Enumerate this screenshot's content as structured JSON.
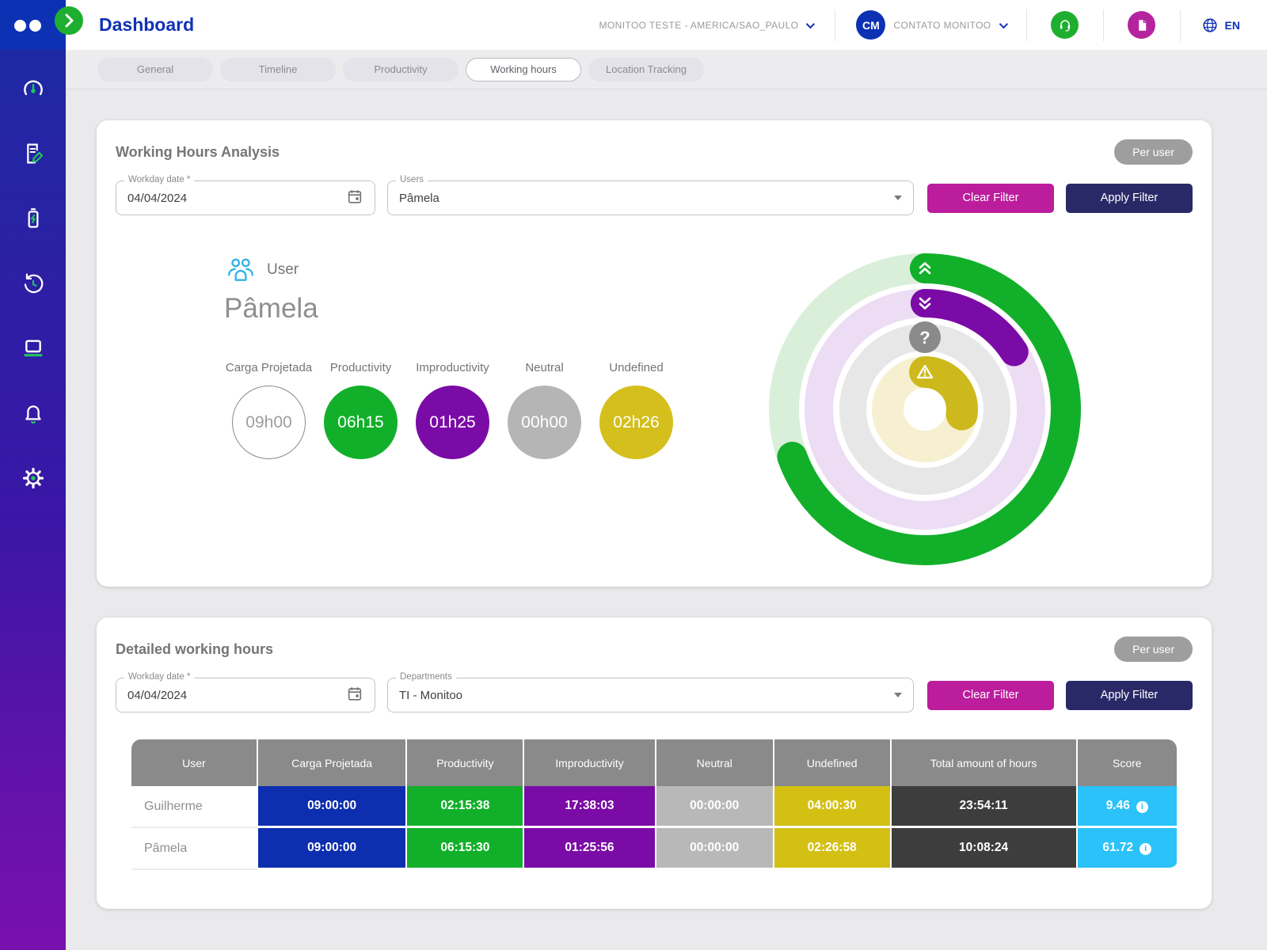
{
  "header": {
    "title": "Dashboard",
    "org_selector": "MONITOO TESTE - AMERICA/SAO_PAULO",
    "avatar_initials": "CM",
    "account_name": "CONTATO MONITOO",
    "language": "EN"
  },
  "sidebar": {
    "items": [
      {
        "icon": "gauge-icon"
      },
      {
        "icon": "report-edit-icon"
      },
      {
        "icon": "battery-bolt-icon"
      },
      {
        "icon": "history-icon"
      },
      {
        "icon": "laptop-icon"
      },
      {
        "icon": "bell-icon"
      },
      {
        "icon": "gear-icon"
      }
    ]
  },
  "tabs": {
    "items": [
      "General",
      "Timeline",
      "Productivity",
      "Working hours",
      "Location Tracking"
    ],
    "active": "Working hours"
  },
  "analysis_card": {
    "title": "Working Hours Analysis",
    "badge": "Per user",
    "workday_date": {
      "label": "Workday date *",
      "value": "04/04/2024"
    },
    "users_field": {
      "label": "Users",
      "value": "Pâmela"
    },
    "clear_filter_label": "Clear Filter",
    "apply_filter_label": "Apply Filter",
    "user_label": "User",
    "user_name": "Pâmela",
    "stats": [
      {
        "label": "Carga Projetada",
        "value": "09h00",
        "color": "outline"
      },
      {
        "label": "Productivity",
        "value": "06h15",
        "color": "#12b02a"
      },
      {
        "label": "Improductivity",
        "value": "01h25",
        "color": "#7b0ba6"
      },
      {
        "label": "Neutral",
        "value": "00h00",
        "color": "#b5b5b5"
      },
      {
        "label": "Undefined",
        "value": "02h26",
        "color": "#d4bf1c"
      }
    ]
  },
  "chart_data": {
    "type": "donut",
    "title": "Working hours distribution rings (outer to inner)",
    "total_reference": "09h00",
    "rings": [
      {
        "label": "Productivity",
        "value": "06h15",
        "pct": 69.5,
        "color": "#12b02a",
        "track": "#d9efd9",
        "icon": "chevrons-up"
      },
      {
        "label": "Improductivity",
        "value": "01h25",
        "pct": 15.9,
        "color": "#7b0ba6",
        "track": "#ecdcf4",
        "icon": "chevrons-down"
      },
      {
        "label": "Neutral",
        "value": "00h00",
        "pct": 0,
        "color": "#8a8a8a",
        "track": "#e7e7e7",
        "icon": "question"
      },
      {
        "label": "Undefined",
        "value": "02h26",
        "pct": 27.2,
        "color": "#cdb91c",
        "track": "#f6f0d0",
        "icon": "warning"
      }
    ],
    "legend_position": "none",
    "grid": false
  },
  "details_card": {
    "title": "Detailed working hours",
    "badge": "Per user",
    "workday_date": {
      "label": "Workday date *",
      "value": "04/04/2024"
    },
    "departments_field": {
      "label": "Departments",
      "value": "TI - Monitoo"
    },
    "clear_filter_label": "Clear Filter",
    "apply_filter_label": "Apply Filter",
    "table": {
      "columns": [
        "User",
        "Carga Projetada",
        "Productivity",
        "Improductivity",
        "Neutral",
        "Undefined",
        "Total amount of hours",
        "Score"
      ],
      "rows": [
        [
          "Guilherme",
          "09:00:00",
          "02:15:38",
          "17:38:03",
          "00:00:00",
          "04:00:30",
          "23:54:11",
          "9.46"
        ],
        [
          "Pâmela",
          "09:00:00",
          "06:15:30",
          "01:25:56",
          "00:00:00",
          "02:26:58",
          "10:08:24",
          "61.72"
        ]
      ]
    }
  },
  "colors": {
    "accent_blue": "#1032b4",
    "sidebar_gradient_top": "#1b2aa3",
    "sidebar_gradient_bottom": "#7a10ad",
    "green": "#12b02a",
    "purple": "#7b0ba6",
    "neutral_gray": "#b8b8b8",
    "yellow": "#d3c013",
    "carga_blue": "#0d2eae",
    "total_dark": "#3d3d3d",
    "score_cyan": "#2ac2f8",
    "clear_magenta": "#bb1d9c",
    "apply_navy": "#2a2968",
    "table_header_gray": "#8a8a8a"
  }
}
